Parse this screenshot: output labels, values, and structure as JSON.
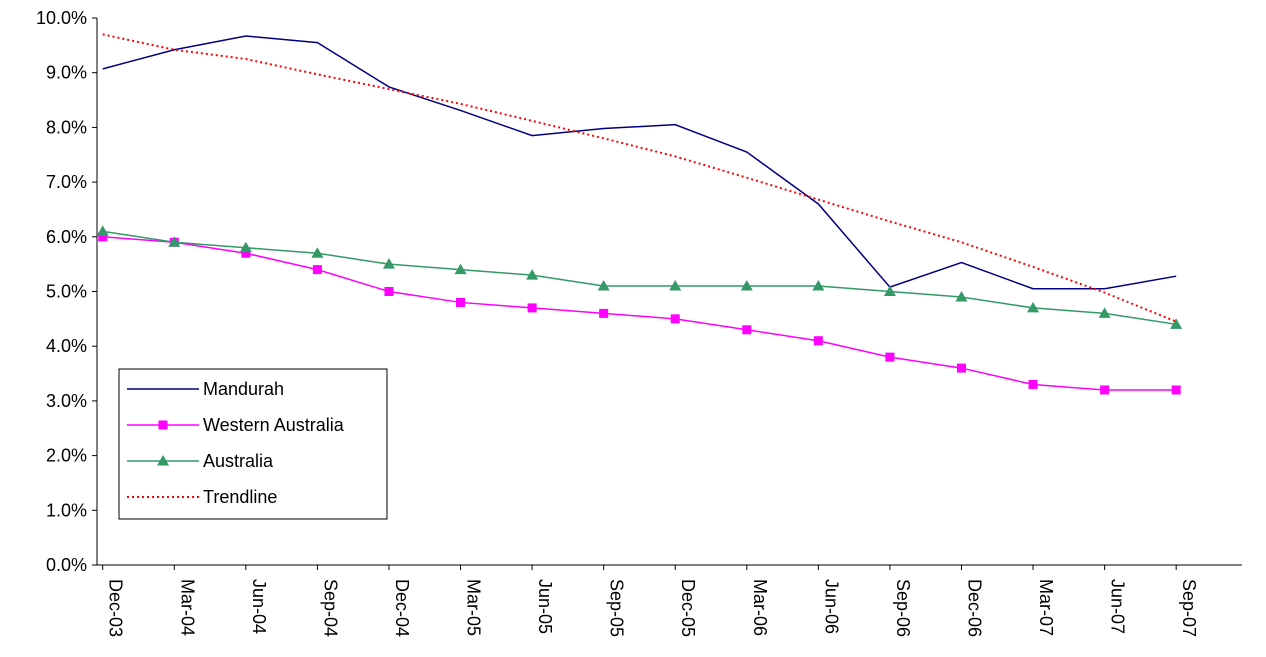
{
  "chart_data": {
    "type": "line",
    "title": "",
    "xlabel": "",
    "ylabel": "",
    "categories": [
      "Dec-03",
      "Mar-04",
      "Jun-04",
      "Sep-04",
      "Dec-04",
      "Mar-05",
      "Jun-05",
      "Sep-05",
      "Dec-05",
      "Mar-06",
      "Jun-06",
      "Sep-06",
      "Dec-06",
      "Mar-07",
      "Jun-07",
      "Sep-07"
    ],
    "ylim": [
      0,
      10
    ],
    "yticks": [
      "0.0%",
      "1.0%",
      "2.0%",
      "3.0%",
      "4.0%",
      "5.0%",
      "6.0%",
      "7.0%",
      "8.0%",
      "9.0%",
      "10.0%"
    ],
    "grid": false,
    "legend_position": "bottom-left",
    "series": [
      {
        "name": "Mandurah",
        "color": "#000080",
        "marker": "none",
        "dash": "solid",
        "values": [
          9.07,
          9.42,
          9.67,
          9.55,
          8.74,
          8.31,
          7.85,
          7.98,
          8.05,
          7.55,
          6.6,
          5.08,
          5.53,
          5.05,
          5.05,
          5.28
        ]
      },
      {
        "name": "Western Australia",
        "color": "#ff00ff",
        "marker": "square",
        "dash": "solid",
        "values": [
          6.0,
          5.9,
          5.7,
          5.4,
          5.0,
          4.8,
          4.7,
          4.6,
          4.5,
          4.3,
          4.1,
          3.8,
          3.6,
          3.3,
          3.2,
          3.2
        ]
      },
      {
        "name": "Australia",
        "color": "#339966",
        "marker": "triangle",
        "dash": "solid",
        "values": [
          6.1,
          5.9,
          5.8,
          5.7,
          5.5,
          5.4,
          5.3,
          5.1,
          5.1,
          5.1,
          5.1,
          5.0,
          4.9,
          4.7,
          4.6,
          4.4
        ]
      },
      {
        "name": "Trendline",
        "color": "#ff0000",
        "marker": "none",
        "dash": "dotted",
        "values": [
          9.7,
          9.42,
          9.25,
          8.97,
          8.7,
          8.43,
          8.12,
          7.8,
          7.47,
          7.08,
          6.68,
          6.28,
          5.9,
          5.45,
          4.98,
          4.45
        ]
      }
    ]
  }
}
